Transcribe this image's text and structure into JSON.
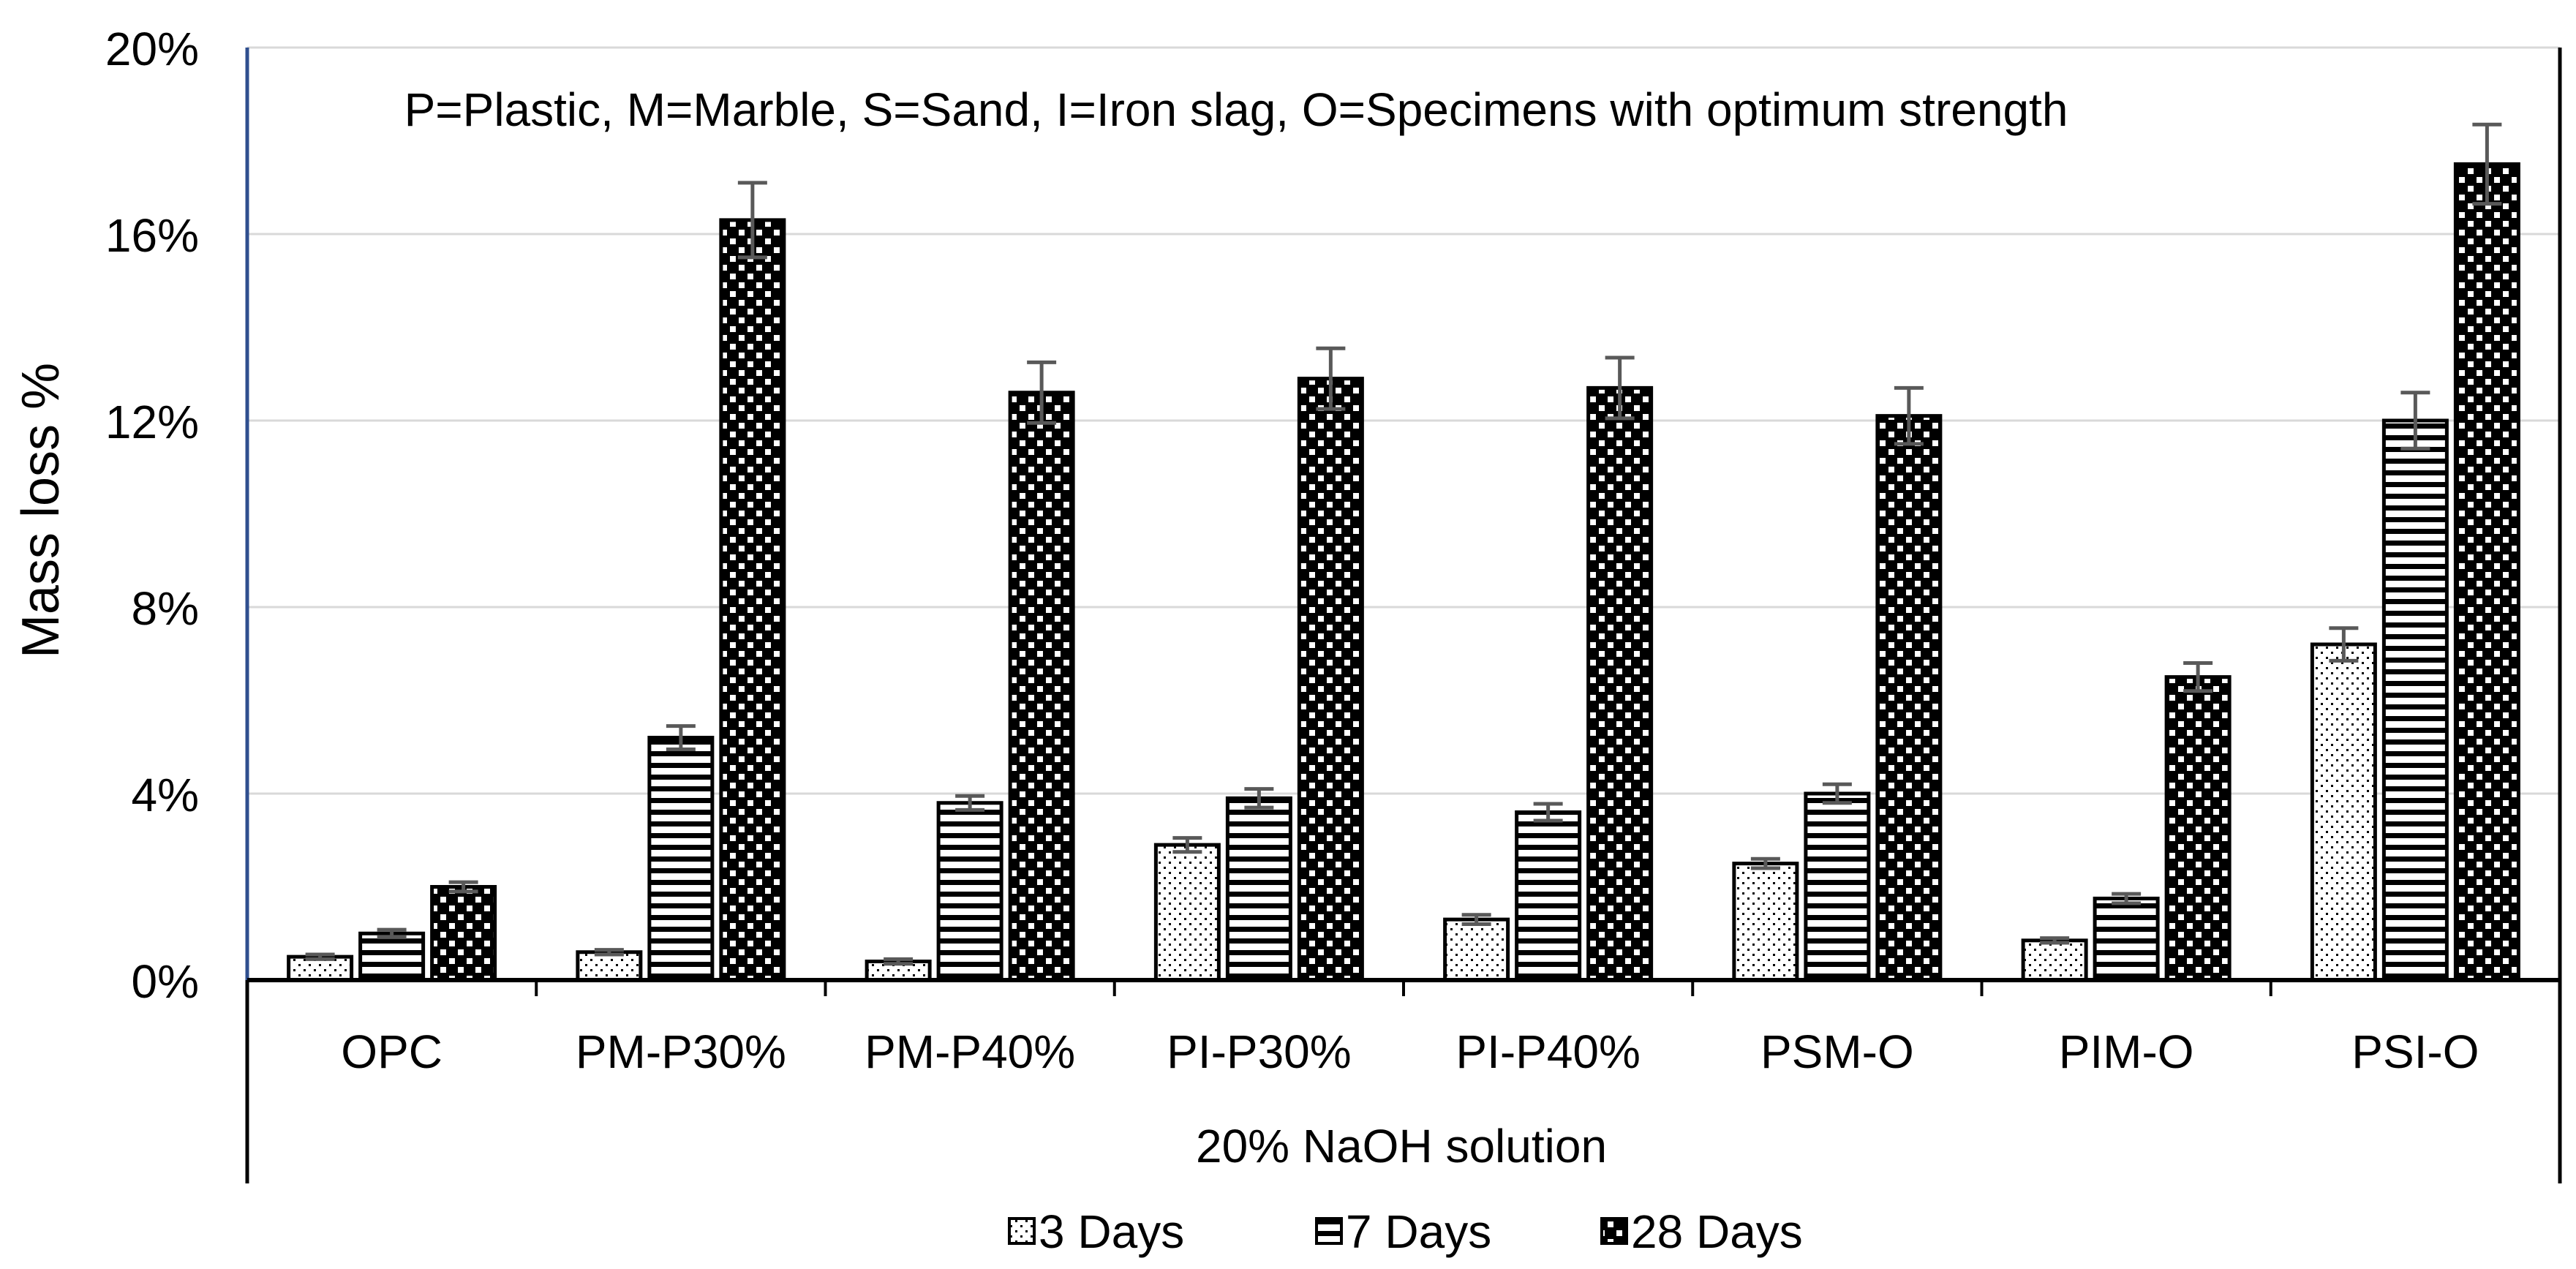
{
  "chart_data": {
    "type": "bar",
    "title": "",
    "annotation": "P=Plastic, M=Marble, S=Sand, I=Iron slag, O=Specimens with optimum strength",
    "xlabel": "20% NaOH solution",
    "ylabel": "Mass loss %",
    "ylim": [
      0,
      20
    ],
    "y_ticks": [
      "0%",
      "4%",
      "8%",
      "12%",
      "16%",
      "20%"
    ],
    "grid": true,
    "legend_position": "bottom",
    "categories": [
      "OPC",
      "PM-P30%",
      "PM-P40%",
      "PI-P30%",
      "PI-P40%",
      "PSM-O",
      "PIM-O",
      "PSI-O"
    ],
    "series": [
      {
        "name": "3 Days",
        "values": [
          0.5,
          0.6,
          0.4,
          2.9,
          1.3,
          2.5,
          0.85,
          7.2
        ],
        "errors": [
          0.05,
          0.05,
          0.05,
          0.15,
          0.1,
          0.1,
          0.05,
          0.35
        ]
      },
      {
        "name": "7 Days",
        "values": [
          1.0,
          5.2,
          3.8,
          3.9,
          3.6,
          4.0,
          1.75,
          12.0
        ],
        "errors": [
          0.08,
          0.25,
          0.15,
          0.2,
          0.18,
          0.2,
          0.1,
          0.6
        ]
      },
      {
        "name": "28 Days",
        "values": [
          2.0,
          16.3,
          12.6,
          12.9,
          12.7,
          12.1,
          6.5,
          17.5
        ],
        "errors": [
          0.1,
          0.8,
          0.65,
          0.65,
          0.65,
          0.6,
          0.3,
          0.85
        ]
      }
    ]
  }
}
